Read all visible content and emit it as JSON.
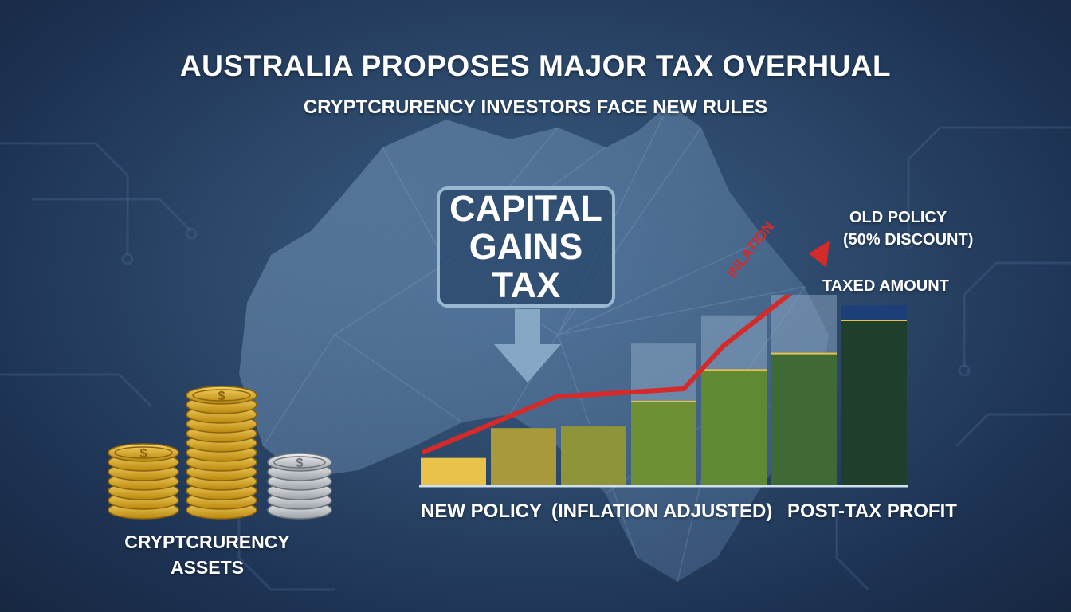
{
  "headline": "AUSTRALIA PROPOSES MAJOR TAX OVERHUAL",
  "subheadline": "CRYPTCRURENCY INVESTORS FACE NEW RULES",
  "center_box": {
    "line1": "CAPITAL",
    "line2": "GAINS",
    "line3": "TAX"
  },
  "trend_label": "INLATION",
  "old_policy": {
    "line1": "OLD POLICY",
    "line2": "(50% DISCOUNT)"
  },
  "taxed_label": "TAXED AMOUNT",
  "bottom_labels": {
    "left": "NEW POLICY",
    "middle": "(INFLATION ADJUSTED)",
    "right": "POST-TAX PROFIT"
  },
  "coins_label": {
    "line1": "CRYPTCRURENCY",
    "line2": "ASSETS"
  },
  "coin_symbol": "$",
  "icons": [
    "down-arrow-icon",
    "trend-arrow-icon",
    "coin-stack-icon"
  ],
  "colors": {
    "trend_line": "#d42a2a",
    "bar_gold": "#e8c24a",
    "bar_green_dark": "#1f3f2c",
    "taxed_blue": "#1c3f7a"
  },
  "bars": [
    {
      "base": 0.17,
      "ghost": 0
    },
    {
      "base": 0.35,
      "ghost": 0
    },
    {
      "base": 0.36,
      "ghost": 0
    },
    {
      "base": 0.51,
      "ghost": 0.35
    },
    {
      "base": 0.7,
      "ghost": 0.33
    },
    {
      "base": 0.8,
      "ghost": 0.45
    },
    {
      "base": 1.0,
      "ghost": 0.09
    }
  ]
}
